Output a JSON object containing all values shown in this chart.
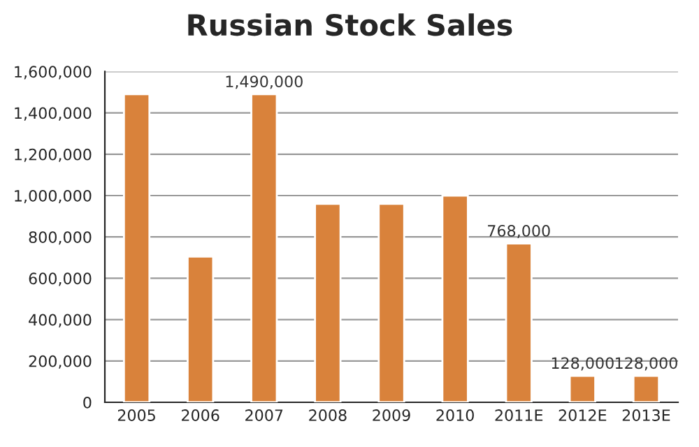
{
  "chart_data": {
    "type": "bar",
    "title": "Russian Stock Sales",
    "categories": [
      "2005",
      "2006",
      "2007",
      "2008",
      "2009",
      "2010",
      "2011E",
      "2012E",
      "2013E"
    ],
    "values": [
      1490000,
      705000,
      1490000,
      960000,
      960000,
      1000000,
      768000,
      128000,
      128000
    ],
    "value_labels": [
      null,
      null,
      "1,490,000",
      null,
      null,
      null,
      "768,000",
      "128,000",
      "128,000"
    ],
    "color": "#d9823b",
    "ylim": [
      0,
      1600000
    ],
    "yticks": [
      {
        "value": 0,
        "label": "0"
      },
      {
        "value": 200000,
        "label": "200,000"
      },
      {
        "value": 400000,
        "label": "400,000"
      },
      {
        "value": 600000,
        "label": "600,000"
      },
      {
        "value": 800000,
        "label": "800,000"
      },
      {
        "value": 1000000,
        "label": "1,000,000"
      },
      {
        "value": 1200000,
        "label": "1,200,000"
      },
      {
        "value": 1400000,
        "label": "1,400,000"
      },
      {
        "value": 1600000,
        "label": "1,600,000"
      }
    ],
    "grid": "y"
  }
}
